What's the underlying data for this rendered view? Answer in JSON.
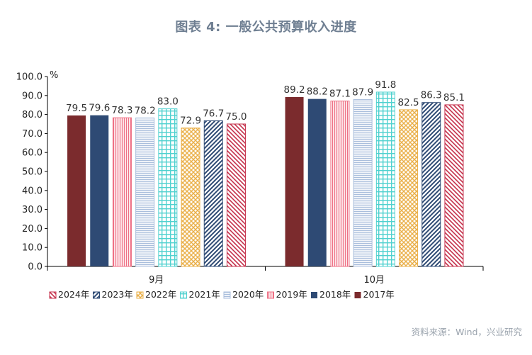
{
  "title": "图表 4:  一般公共预算收入进度",
  "source": "资料来源：Wind，兴业研究",
  "chart_data": {
    "type": "bar",
    "ylabel": "%",
    "ylim": [
      0,
      100
    ],
    "ytick_step": 10,
    "ytick_labels": [
      "0.0",
      "10.0",
      "20.0",
      "30.0",
      "40.0",
      "50.0",
      "60.0",
      "70.0",
      "80.0",
      "90.0",
      "100.0"
    ],
    "categories": [
      "9月",
      "10月"
    ],
    "grid": false,
    "legend_position": "bottom",
    "series": [
      {
        "name": "2017年",
        "values": [
          79.5,
          89.2
        ],
        "labels": [
          "79.5",
          "89.2"
        ],
        "color": "#7b2b2d",
        "pattern": "solid"
      },
      {
        "name": "2018年",
        "values": [
          79.6,
          88.2
        ],
        "labels": [
          "79.6",
          "88.2"
        ],
        "color": "#2e4a74",
        "pattern": "solid"
      },
      {
        "name": "2019年",
        "values": [
          78.3,
          87.1
        ],
        "labels": [
          "78.3",
          "87.1"
        ],
        "color": "#ee6f84",
        "pattern": "vertical"
      },
      {
        "name": "2020年",
        "values": [
          78.2,
          87.9
        ],
        "labels": [
          "78.2",
          "87.9"
        ],
        "color": "#a9bedc",
        "pattern": "horizontal"
      },
      {
        "name": "2021年",
        "values": [
          83.0,
          91.8
        ],
        "labels": [
          "83.0",
          "91.8"
        ],
        "color": "#4fd1cf",
        "pattern": "grid"
      },
      {
        "name": "2022年",
        "values": [
          72.9,
          82.5
        ],
        "labels": [
          "72.9",
          "82.5"
        ],
        "color": "#eab04a",
        "pattern": "cross"
      },
      {
        "name": "2023年",
        "values": [
          76.7,
          86.3
        ],
        "labels": [
          "76.7",
          "86.3"
        ],
        "color": "#2e4a74",
        "pattern": "diag-up"
      },
      {
        "name": "2024年",
        "values": [
          75.0,
          85.1
        ],
        "labels": [
          "75.0",
          "85.1"
        ],
        "color": "#c5304b",
        "pattern": "diag-down"
      }
    ],
    "legend_order": [
      "2024年",
      "2023年",
      "2022年",
      "2021年",
      "2020年",
      "2019年",
      "2018年",
      "2017年"
    ]
  }
}
